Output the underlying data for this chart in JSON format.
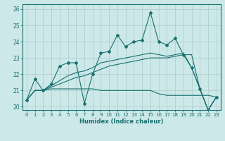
{
  "xlabel": "Humidex (Indice chaleur)",
  "ylabel": "",
  "bg_color": "#cce8e8",
  "grid_color": "#aacccc",
  "line_color": "#1a7070",
  "xlim": [
    -0.5,
    23.5
  ],
  "ylim": [
    19.8,
    26.3
  ],
  "yticks": [
    20,
    21,
    22,
    23,
    24,
    25,
    26
  ],
  "xticks": [
    0,
    1,
    2,
    3,
    4,
    5,
    6,
    7,
    8,
    9,
    10,
    11,
    12,
    13,
    14,
    15,
    16,
    17,
    18,
    19,
    20,
    21,
    22,
    23
  ],
  "series": [
    [
      20.4,
      21.7,
      21.0,
      21.4,
      22.5,
      22.7,
      22.7,
      20.2,
      22.0,
      23.3,
      23.4,
      24.4,
      23.7,
      24.0,
      24.1,
      25.8,
      24.0,
      23.8,
      24.2,
      23.2,
      22.4,
      21.1,
      19.8,
      20.6
    ],
    [
      20.4,
      21.0,
      21.0,
      21.1,
      21.1,
      21.1,
      21.1,
      21.1,
      21.1,
      21.0,
      21.0,
      21.0,
      21.0,
      21.0,
      21.0,
      21.0,
      20.8,
      20.7,
      20.7,
      20.7,
      20.7,
      20.7,
      20.7,
      20.6
    ],
    [
      20.4,
      21.0,
      21.0,
      21.2,
      21.4,
      21.6,
      21.8,
      21.9,
      22.1,
      22.3,
      22.5,
      22.6,
      22.7,
      22.8,
      22.9,
      23.0,
      23.0,
      23.0,
      23.1,
      23.2,
      23.2,
      21.1,
      19.8,
      20.6
    ],
    [
      20.4,
      21.0,
      21.0,
      21.3,
      21.6,
      21.9,
      22.1,
      22.2,
      22.4,
      22.7,
      22.8,
      22.9,
      23.0,
      23.1,
      23.2,
      23.3,
      23.2,
      23.1,
      23.2,
      23.3,
      22.4,
      21.1,
      19.8,
      20.6
    ]
  ],
  "marker_series": 0
}
